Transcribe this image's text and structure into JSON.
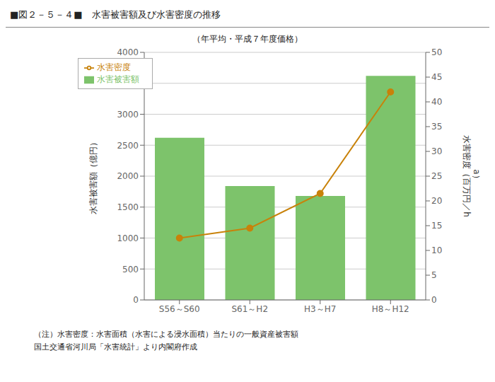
{
  "chart_data": {
    "type": "bar",
    "title": "■図２－５－４■　水害被害額及び水害密度の推移",
    "subtitle": "（年平均・平成７年度価格）",
    "categories": [
      "S56～S60",
      "S61～H2",
      "H3～H7",
      "H8～H12"
    ],
    "series": [
      {
        "name": "水害被害額",
        "type": "bar",
        "color": "#7dc36b",
        "values": [
          2620,
          1840,
          1680,
          3620
        ]
      },
      {
        "name": "水害密度",
        "type": "line",
        "color": "#c8820a",
        "marker": "circle",
        "axis": "y2",
        "values": [
          12.5,
          14.5,
          21.5,
          42.0
        ]
      }
    ],
    "ylabel": "水害被害額（億円）",
    "y2label": "水害密度（百万円／h\na）",
    "ylim": [
      0,
      4000
    ],
    "yticks": [
      0,
      500,
      1000,
      1500,
      2000,
      2500,
      3000,
      3500,
      4000
    ],
    "y2lim": [
      0,
      50
    ],
    "y2ticks": [
      0,
      5,
      10,
      15,
      20,
      25,
      30,
      35,
      40,
      45,
      50
    ],
    "grid": true,
    "legend": "upper left",
    "annotations": [
      "（注）水害密度：水害面積（水害による浸水面積）当たりの一般資産被害額",
      "国土交通省河川局「水害統計」より内閣府作成"
    ]
  }
}
